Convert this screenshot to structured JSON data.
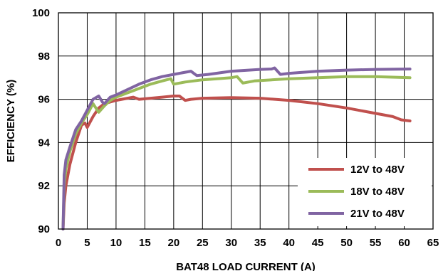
{
  "chart_data": {
    "type": "line",
    "xlabel": "BAT48 LOAD CURRENT (A)",
    "ylabel": "EFFICIENCY (%)",
    "xlim": [
      0,
      65
    ],
    "ylim": [
      90,
      100
    ],
    "x_ticks": [
      0,
      5,
      10,
      15,
      20,
      25,
      30,
      35,
      40,
      45,
      50,
      55,
      60,
      65
    ],
    "y_ticks": [
      90,
      92,
      94,
      96,
      98,
      100
    ],
    "grid": true,
    "legend_position": "bottom-right",
    "series": [
      {
        "name": "12V to 48V",
        "color": "#c0504d",
        "points": [
          [
            0.8,
            90.0
          ],
          [
            1.0,
            91.2
          ],
          [
            1.3,
            92.0
          ],
          [
            2,
            93.0
          ],
          [
            3,
            94.0
          ],
          [
            4,
            94.8
          ],
          [
            4.6,
            94.9
          ],
          [
            5.0,
            94.7
          ],
          [
            6,
            95.2
          ],
          [
            7,
            95.6
          ],
          [
            8,
            95.8
          ],
          [
            10,
            95.95
          ],
          [
            12,
            96.05
          ],
          [
            13,
            96.1
          ],
          [
            14,
            96.0
          ],
          [
            16,
            96.05
          ],
          [
            18,
            96.1
          ],
          [
            20,
            96.15
          ],
          [
            21,
            96.15
          ],
          [
            22,
            95.95
          ],
          [
            23,
            96.0
          ],
          [
            25,
            96.05
          ],
          [
            30,
            96.08
          ],
          [
            35,
            96.05
          ],
          [
            40,
            95.95
          ],
          [
            45,
            95.8
          ],
          [
            50,
            95.6
          ],
          [
            55,
            95.35
          ],
          [
            58,
            95.2
          ],
          [
            59.5,
            95.05
          ],
          [
            61,
            95.0
          ]
        ]
      },
      {
        "name": "18V to 48V",
        "color": "#9bbb59",
        "points": [
          [
            0.8,
            90.0
          ],
          [
            1.0,
            92.0
          ],
          [
            1.3,
            92.8
          ],
          [
            2,
            93.6
          ],
          [
            3,
            94.4
          ],
          [
            4,
            94.9
          ],
          [
            5,
            95.3
          ],
          [
            6,
            95.8
          ],
          [
            6.5,
            95.6
          ],
          [
            7,
            95.4
          ],
          [
            8,
            95.7
          ],
          [
            9,
            95.95
          ],
          [
            10,
            96.1
          ],
          [
            12,
            96.3
          ],
          [
            14,
            96.5
          ],
          [
            16,
            96.7
          ],
          [
            18,
            96.85
          ],
          [
            19.5,
            96.95
          ],
          [
            20,
            96.7
          ],
          [
            22,
            96.8
          ],
          [
            25,
            96.9
          ],
          [
            30,
            97.0
          ],
          [
            31,
            97.05
          ],
          [
            32,
            96.75
          ],
          [
            34,
            96.85
          ],
          [
            40,
            96.95
          ],
          [
            45,
            97.0
          ],
          [
            50,
            97.05
          ],
          [
            55,
            97.05
          ],
          [
            61,
            97.0
          ]
        ]
      },
      {
        "name": "21V to 48V",
        "color": "#8064a2",
        "points": [
          [
            0.8,
            90.0
          ],
          [
            1.0,
            92.5
          ],
          [
            1.3,
            93.2
          ],
          [
            2,
            93.8
          ],
          [
            3,
            94.6
          ],
          [
            4,
            95.0
          ],
          [
            5,
            95.5
          ],
          [
            6,
            96.0
          ],
          [
            7,
            96.15
          ],
          [
            7.7,
            95.85
          ],
          [
            8,
            95.8
          ],
          [
            9,
            96.1
          ],
          [
            10,
            96.2
          ],
          [
            12,
            96.45
          ],
          [
            14,
            96.7
          ],
          [
            16,
            96.9
          ],
          [
            18,
            97.05
          ],
          [
            20,
            97.15
          ],
          [
            22,
            97.25
          ],
          [
            23,
            97.3
          ],
          [
            24,
            97.1
          ],
          [
            26,
            97.15
          ],
          [
            30,
            97.3
          ],
          [
            35,
            97.38
          ],
          [
            37,
            97.4
          ],
          [
            37.5,
            97.45
          ],
          [
            38.5,
            97.15
          ],
          [
            40,
            97.2
          ],
          [
            45,
            97.3
          ],
          [
            50,
            97.35
          ],
          [
            55,
            97.38
          ],
          [
            61,
            97.4
          ]
        ]
      }
    ]
  }
}
